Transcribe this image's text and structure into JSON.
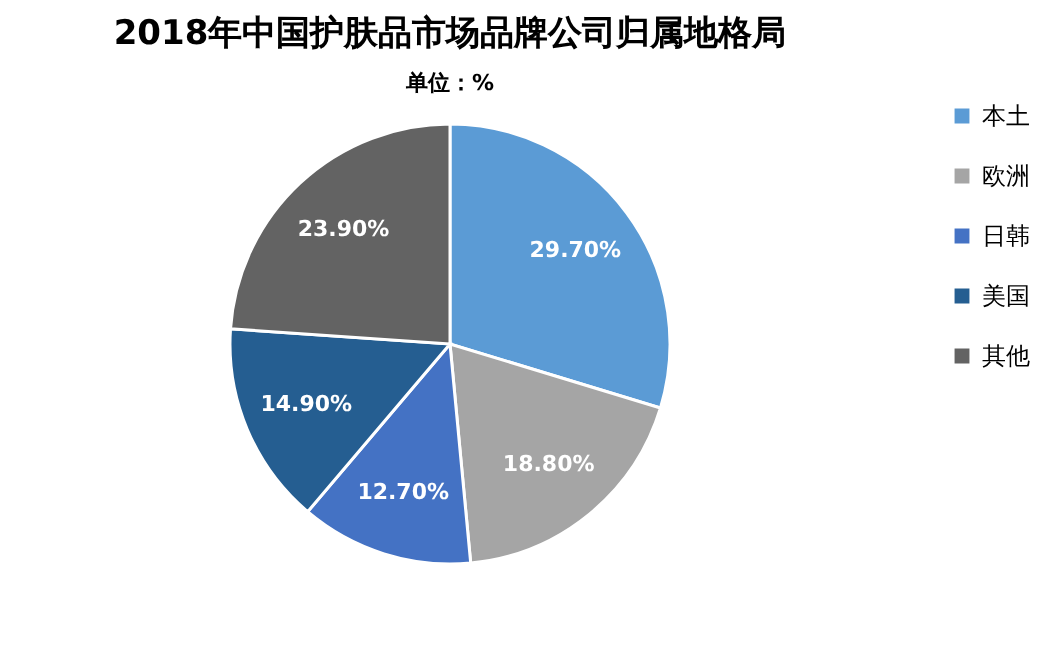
{
  "chart_data": {
    "type": "pie",
    "title": "2018年中国护肤品市场品牌公司归属地格局",
    "subtitle": "单位：%",
    "categories": [
      "本土",
      "欧洲",
      "日韩",
      "美国",
      "其他"
    ],
    "values": [
      29.7,
      18.8,
      12.7,
      14.9,
      23.9
    ],
    "value_labels": [
      "29.70%",
      "18.80%",
      "12.70%",
      "14.90%",
      "23.90%"
    ],
    "colors": [
      "#5b9bd5",
      "#a5a5a5",
      "#4472c4",
      "#255e91",
      "#636363"
    ],
    "legend": "right"
  }
}
